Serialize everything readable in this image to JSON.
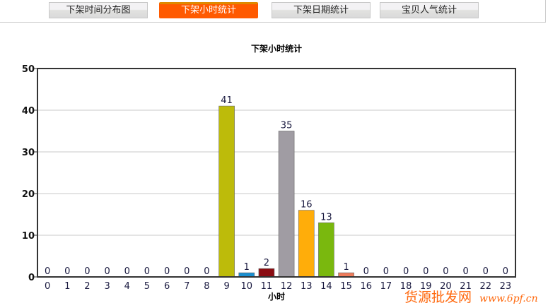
{
  "tabs": [
    {
      "label": "下架时间分布图",
      "active": false
    },
    {
      "label": "下架小时统计",
      "active": true
    },
    {
      "label": "下架日期统计",
      "active": false
    },
    {
      "label": "宝贝人气统计",
      "active": false
    }
  ],
  "chart_data": {
    "type": "bar",
    "title": "下架小时统计",
    "xlabel": "小时",
    "ylabel": "",
    "ylim": [
      0,
      50
    ],
    "yticks": [
      0,
      10,
      20,
      30,
      40,
      50
    ],
    "grid": true,
    "categories": [
      "0",
      "1",
      "2",
      "3",
      "4",
      "5",
      "6",
      "7",
      "8",
      "9",
      "10",
      "11",
      "12",
      "13",
      "14",
      "15",
      "16",
      "17",
      "18",
      "19",
      "20",
      "21",
      "22",
      "23"
    ],
    "values": [
      0,
      0,
      0,
      0,
      0,
      0,
      0,
      0,
      0,
      41,
      1,
      2,
      35,
      16,
      13,
      1,
      0,
      0,
      0,
      0,
      0,
      0,
      0,
      0
    ],
    "colors": [
      "#bdbb0a",
      "#1a8fd0",
      "#8b0d12",
      "#a09ca3",
      "#ffad0a",
      "#7ab80e",
      "#ef7b5a"
    ],
    "data_labels": true
  },
  "watermark": {
    "line1": "货源批发网",
    "line2": "www.6pf.cn",
    "color": "#ff6a10"
  }
}
